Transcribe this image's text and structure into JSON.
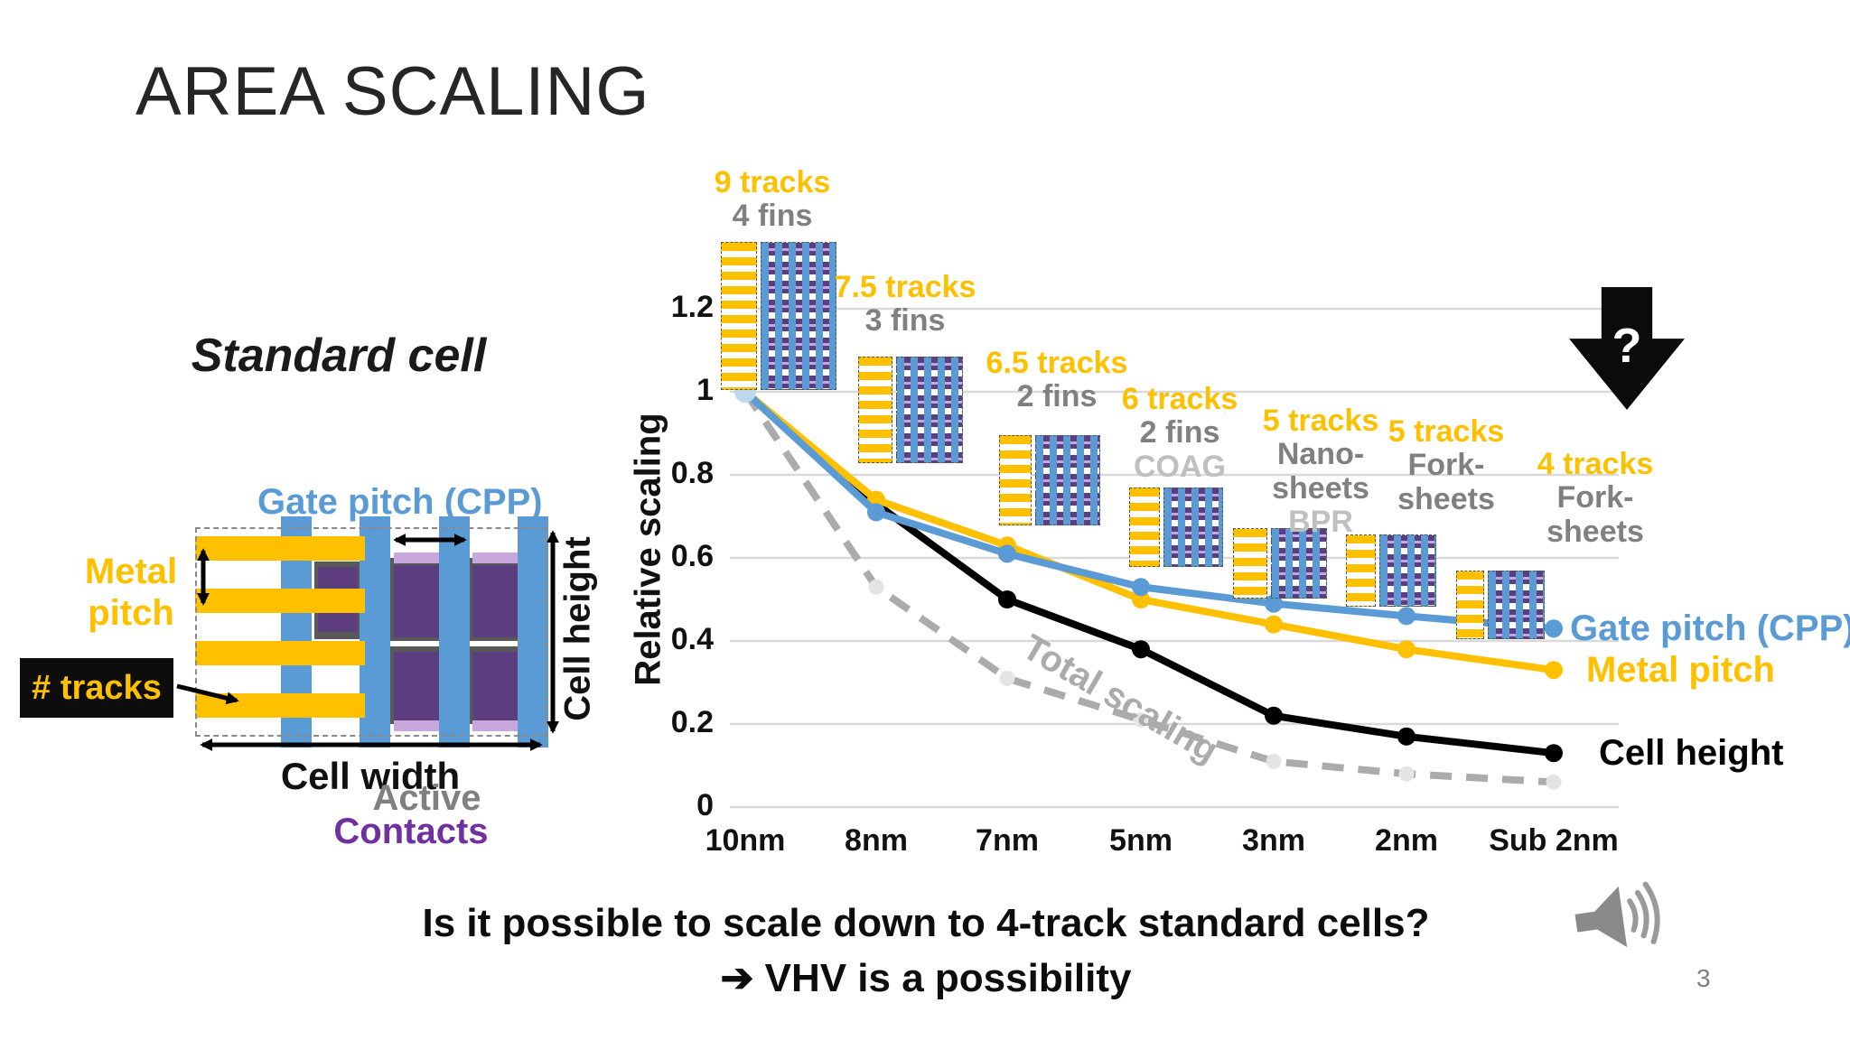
{
  "slide": {
    "title": "AREA SCALING",
    "page_number": "3"
  },
  "standard_cell": {
    "heading": "Standard cell",
    "labels": {
      "gate_pitch": "Gate pitch (CPP)",
      "metal_pitch": "Metal pitch",
      "num_tracks": "# tracks",
      "cell_height": "Cell height",
      "cell_width": "Cell width",
      "active": "Active",
      "contacts": "Contacts"
    }
  },
  "big_arrow": {
    "question_mark": "?"
  },
  "question": {
    "line1": "Is it possible to scale down to 4-track standard cells?",
    "line2": "➔ VHV is a possibility"
  },
  "colors": {
    "yellow": "#FFC000",
    "blue": "#5B9BD5",
    "dpurple": "#5C3E7E",
    "lpurple": "#C8A8DC",
    "grid": "#D9D9D9",
    "dashed": "#ABABAB",
    "start_dot": "#BDD7EE"
  },
  "chart_data": {
    "type": "line",
    "title": "",
    "xlabel": "",
    "ylabel": "Relative scaling",
    "categories": [
      "10nm",
      "8nm",
      "7nm",
      "5nm",
      "3nm",
      "2nm",
      "Sub 2nm"
    ],
    "yticks": [
      "0",
      "0.2",
      "0.4",
      "0.6",
      "0.8",
      "1",
      "1.2"
    ],
    "ylim": [
      0,
      1.35
    ],
    "grid": true,
    "legend_position": "line-end-labels",
    "series": [
      {
        "name": "Gate pitch (CPP)",
        "color": "#5B9BD5",
        "dash": false,
        "values": [
          1.0,
          0.71,
          0.61,
          0.53,
          0.49,
          0.46,
          0.43
        ]
      },
      {
        "name": "Metal pitch",
        "color": "#FFC000",
        "dash": false,
        "values": [
          1.0,
          0.74,
          0.63,
          0.5,
          0.44,
          0.38,
          0.33
        ]
      },
      {
        "name": "Cell height",
        "color": "#000000",
        "dash": false,
        "values": [
          1.0,
          0.73,
          0.5,
          0.38,
          0.22,
          0.17,
          0.13
        ]
      },
      {
        "name": "Total scaling",
        "color": "#ABABAB",
        "dash": true,
        "values": [
          1.0,
          0.53,
          0.31,
          0.21,
          0.11,
          0.08,
          0.06
        ]
      }
    ],
    "annotations": [
      {
        "x_index": 0,
        "lines": [
          {
            "text": "9 tracks",
            "style": "tracks"
          },
          {
            "text": "4 fins",
            "style": "fins"
          }
        ]
      },
      {
        "x_index": 1,
        "lines": [
          {
            "text": "7.5 tracks",
            "style": "tracks"
          },
          {
            "text": "3 fins",
            "style": "fins"
          }
        ]
      },
      {
        "x_index": 2,
        "lines": [
          {
            "text": "6.5 tracks",
            "style": "tracks"
          },
          {
            "text": "2 fins",
            "style": "fins"
          }
        ]
      },
      {
        "x_index": 3,
        "lines": [
          {
            "text": "6 tracks",
            "style": "tracks"
          },
          {
            "text": "2 fins",
            "style": "fins"
          },
          {
            "text": "COAG",
            "style": "tech"
          }
        ]
      },
      {
        "x_index": 4,
        "lines": [
          {
            "text": "5 tracks",
            "style": "tracks"
          },
          {
            "text": "Nano-",
            "style": "fins"
          },
          {
            "text": "sheets",
            "style": "fins"
          },
          {
            "text": "BPR",
            "style": "tech"
          }
        ]
      },
      {
        "x_index": 5,
        "lines": [
          {
            "text": "5 tracks",
            "style": "tracks"
          },
          {
            "text": "Fork-",
            "style": "fins"
          },
          {
            "text": "sheets",
            "style": "fins"
          }
        ]
      },
      {
        "x_index": 6,
        "lines": [
          {
            "text": "4 tracks",
            "style": "tracks"
          },
          {
            "text": "Fork-",
            "style": "fins"
          },
          {
            "text": "sheets",
            "style": "fins"
          }
        ]
      }
    ]
  }
}
